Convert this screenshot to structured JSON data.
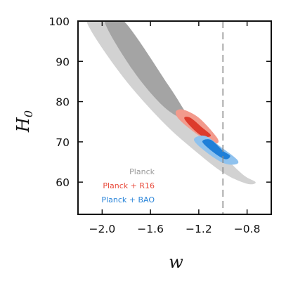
{
  "chart_data": {
    "type": "contour",
    "xlabel": "w",
    "ylabel": "H",
    "ylabel_sub": "0",
    "xlim": [
      -2.2,
      -0.6
    ],
    "ylim": [
      52,
      100
    ],
    "xticks": [
      {
        "value": -2.0,
        "label": "−2.0"
      },
      {
        "value": -1.6,
        "label": "−1.6"
      },
      {
        "value": -1.2,
        "label": "−1.2"
      },
      {
        "value": -0.8,
        "label": "−0.8"
      }
    ],
    "yticks": [
      {
        "value": 60,
        "label": "60"
      },
      {
        "value": 70,
        "label": "70"
      },
      {
        "value": 80,
        "label": "80"
      },
      {
        "value": 90,
        "label": "90"
      },
      {
        "value": 100,
        "label": "100"
      }
    ],
    "reference_line": {
      "x": -1.0,
      "style": "dashed",
      "color": "#888888"
    },
    "series": [
      {
        "name": "Planck",
        "color": "#999999",
        "contours": [
          {
            "level": "outer",
            "fill": "#d2d2d2",
            "points": [
              [
                -2.13,
                100
              ],
              [
                -1.97,
                100
              ],
              [
                -1.6,
                86
              ],
              [
                -1.3,
                77
              ],
              [
                -1.04,
                68
              ],
              [
                -0.84,
                62
              ],
              [
                -0.73,
                60
              ],
              [
                -0.8,
                59.6
              ],
              [
                -0.98,
                62
              ],
              [
                -1.2,
                67
              ],
              [
                -1.5,
                75
              ],
              [
                -1.85,
                87
              ]
            ]
          },
          {
            "level": "inner",
            "fill": "#a4a4a4",
            "points": [
              [
                -1.98,
                100
              ],
              [
                -1.82,
                100
              ],
              [
                -1.45,
                84
              ],
              [
                -1.3,
                77
              ],
              [
                -1.2,
                73.6
              ],
              [
                -1.3,
                75
              ],
              [
                -1.5,
                79
              ],
              [
                -1.75,
                88
              ]
            ]
          }
        ]
      },
      {
        "name": "Planck + R16",
        "color": "#e8493a",
        "contours": [
          {
            "level": "outer",
            "fill": "#f29a8c",
            "points": [
              [
                -1.39,
                77.5
              ],
              [
                -1.33,
                78
              ],
              [
                -1.2,
                76
              ],
              [
                -1.06,
                71.5
              ],
              [
                -1.04,
                69.8
              ],
              [
                -1.1,
                69.8
              ],
              [
                -1.22,
                72
              ],
              [
                -1.36,
                75.5
              ]
            ]
          },
          {
            "level": "inner",
            "fill": "#dd3b2c",
            "points": [
              [
                -1.32,
                75.8
              ],
              [
                -1.27,
                76
              ],
              [
                -1.17,
                73.5
              ],
              [
                -1.1,
                71.6
              ],
              [
                -1.16,
                71.3
              ],
              [
                -1.24,
                73
              ]
            ]
          }
        ]
      },
      {
        "name": "Planck + BAO",
        "color": "#2a85d9",
        "contours": [
          {
            "level": "outer",
            "fill": "#8fc2ee",
            "points": [
              [
                -1.24,
                70.5
              ],
              [
                -1.15,
                71.5
              ],
              [
                -1.02,
                68.8
              ],
              [
                -0.88,
                65.5
              ],
              [
                -0.9,
                64.4
              ],
              [
                -1.0,
                64.8
              ],
              [
                -1.14,
                67.5
              ]
            ]
          },
          {
            "level": "inner",
            "fill": "#1f7fd8",
            "points": [
              [
                -1.17,
                70
              ],
              [
                -1.1,
                70.5
              ],
              [
                -1.0,
                67.8
              ],
              [
                -0.94,
                66.5
              ],
              [
                -0.98,
                65.7
              ],
              [
                -1.07,
                67.2
              ]
            ]
          }
        ]
      }
    ],
    "legend": {
      "placement": "lower-left",
      "entries": [
        {
          "label": "Planck",
          "color": "#999999"
        },
        {
          "label": "Planck + R16",
          "color": "#e8493a"
        },
        {
          "label": "Planck + BAO",
          "color": "#2a85d9"
        }
      ]
    }
  }
}
